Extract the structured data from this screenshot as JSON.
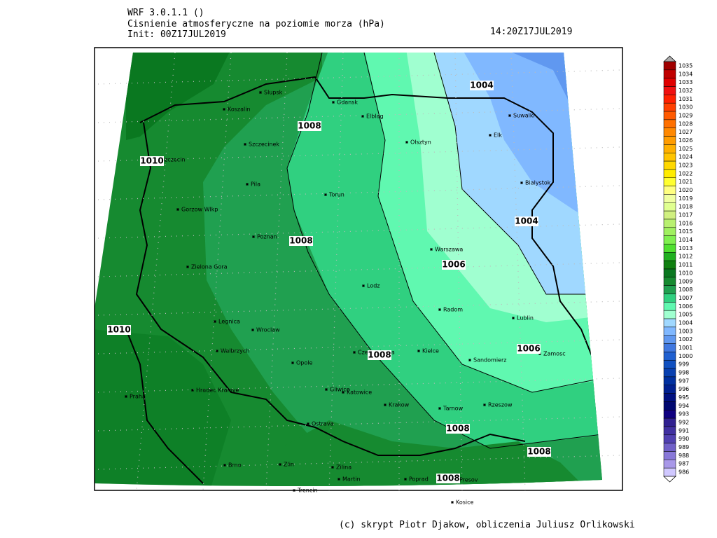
{
  "header": {
    "model": "WRF 3.0.1.1 ()",
    "title": "Cisnienie atmosferyczne na poziomie morza (hPa)",
    "init": "Init: 00Z17JUL2019",
    "valid": "14:20Z17JUL2019"
  },
  "map": {
    "cities": [
      "Slupsk",
      "Koszalin",
      "Gdansk",
      "Elblag",
      "Szczecinek",
      "Olsztyn",
      "Szczecin",
      "Suwalki",
      "Elk",
      "Pila",
      "Torun",
      "Bialystok",
      "Gorzow Wlkp",
      "Poznan",
      "Warszawa",
      "Zielona Gora",
      "Lodz",
      "Radom",
      "Lublin",
      "Legnica",
      "Wroclaw",
      "Kielce",
      "Czestochowa",
      "Walbrzych",
      "Zamosc",
      "Opole",
      "Sandomierz",
      "Hradec Kralove",
      "Gliwice",
      "Katowice",
      "Praha",
      "Krakow",
      "Tarnow",
      "Rzeszow",
      "Ostrava",
      "Brno",
      "Zlin",
      "Zilina",
      "Martin",
      "Poprad",
      "Presov",
      "Trencin",
      "Kosice"
    ],
    "contour_labels": [
      1008,
      1010,
      1004,
      1004,
      1008,
      1006,
      1010,
      1006,
      1008,
      1008,
      1008,
      1008
    ]
  },
  "colorbar": {
    "levels": [
      1035,
      1034,
      1033,
      1032,
      1031,
      1030,
      1029,
      1028,
      1027,
      1026,
      1025,
      1024,
      1023,
      1022,
      1021,
      1020,
      1019,
      1018,
      1017,
      1016,
      1015,
      1014,
      1013,
      1012,
      1011,
      1010,
      1009,
      1008,
      1007,
      1006,
      1005,
      1004,
      1003,
      1002,
      1001,
      1000,
      999,
      998,
      997,
      996,
      995,
      994,
      993,
      992,
      991,
      990,
      989,
      988,
      987,
      986
    ],
    "colors": [
      "#a00000",
      "#c00000",
      "#e00000",
      "#f01010",
      "#ff2000",
      "#ff4000",
      "#ff5a00",
      "#ff7000",
      "#ff8800",
      "#ff9c00",
      "#ffb000",
      "#ffc400",
      "#ffd800",
      "#ffec00",
      "#ffff30",
      "#ffff80",
      "#f0ffa0",
      "#e0ff90",
      "#d0f080",
      "#b8f070",
      "#a0f060",
      "#80f050",
      "#50e030",
      "#20b020",
      "#108010",
      "#0a7820",
      "#168a30",
      "#20a050",
      "#30d080",
      "#60f8b0",
      "#a0ffd0",
      "#a0d8ff",
      "#80b8ff",
      "#6098f0",
      "#4078e0",
      "#2060d0",
      "#1050c0",
      "#0840b0",
      "#0030a0",
      "#002090",
      "#001080",
      "#000870",
      "#100080",
      "#302090",
      "#4030a0",
      "#5040b0",
      "#7060c8",
      "#8878d8",
      "#a898e8",
      "#d0c8ff"
    ]
  },
  "footer": "(c) skrypt Piotr Djakow, obliczenia Juliusz Orlikowski"
}
